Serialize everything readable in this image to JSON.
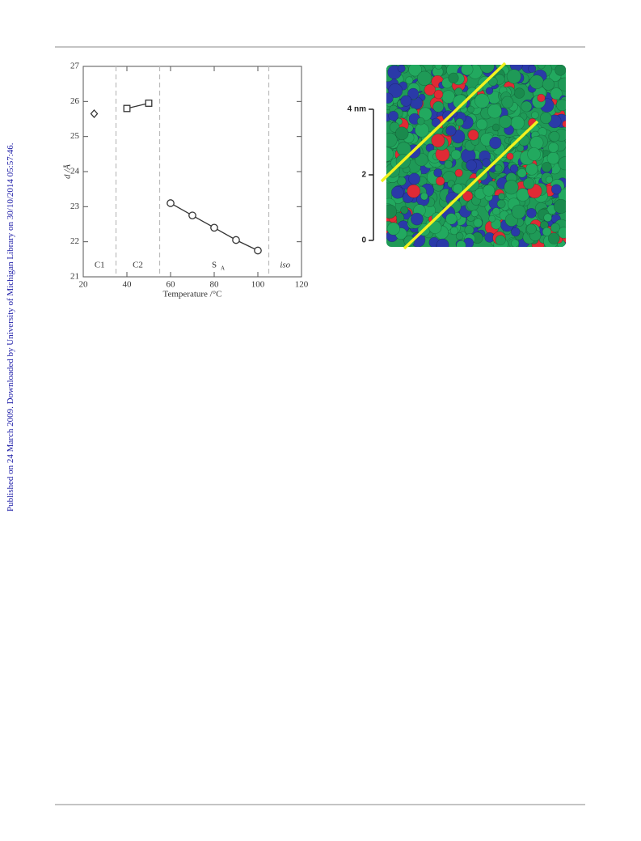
{
  "side_note": "Published on 24 March 2009. Downloaded by University of Michigan Library on 30/10/2014 05:57:46.",
  "chart_data": {
    "type": "scatter",
    "xlabel": "Temperature /°C",
    "ylabel": "d /Å",
    "xlim": [
      20,
      120
    ],
    "xticks": [
      20,
      40,
      60,
      80,
      100,
      120
    ],
    "ylim": [
      21,
      27
    ],
    "yticks": [
      21,
      22,
      23,
      24,
      25,
      26,
      27
    ],
    "phase_boundaries": [
      35,
      55,
      105
    ],
    "phase_labels": [
      "C1",
      "C2",
      "S",
      "iso"
    ],
    "phase_label_subscripts": [
      null,
      null,
      "A",
      null
    ],
    "color": "#333333",
    "series": [
      {
        "marker": "diamond",
        "x": [
          25
        ],
        "values": [
          25.65
        ]
      },
      {
        "marker": "square",
        "x": [
          40,
          50
        ],
        "values": [
          25.8,
          25.95
        ]
      },
      {
        "marker": "circle",
        "x": [
          60,
          70,
          80,
          90,
          100
        ],
        "values": [
          23.1,
          22.75,
          22.4,
          22.05,
          21.75
        ]
      }
    ]
  },
  "image": {
    "scale_labels": [
      "4 nm",
      "2",
      "0"
    ]
  }
}
